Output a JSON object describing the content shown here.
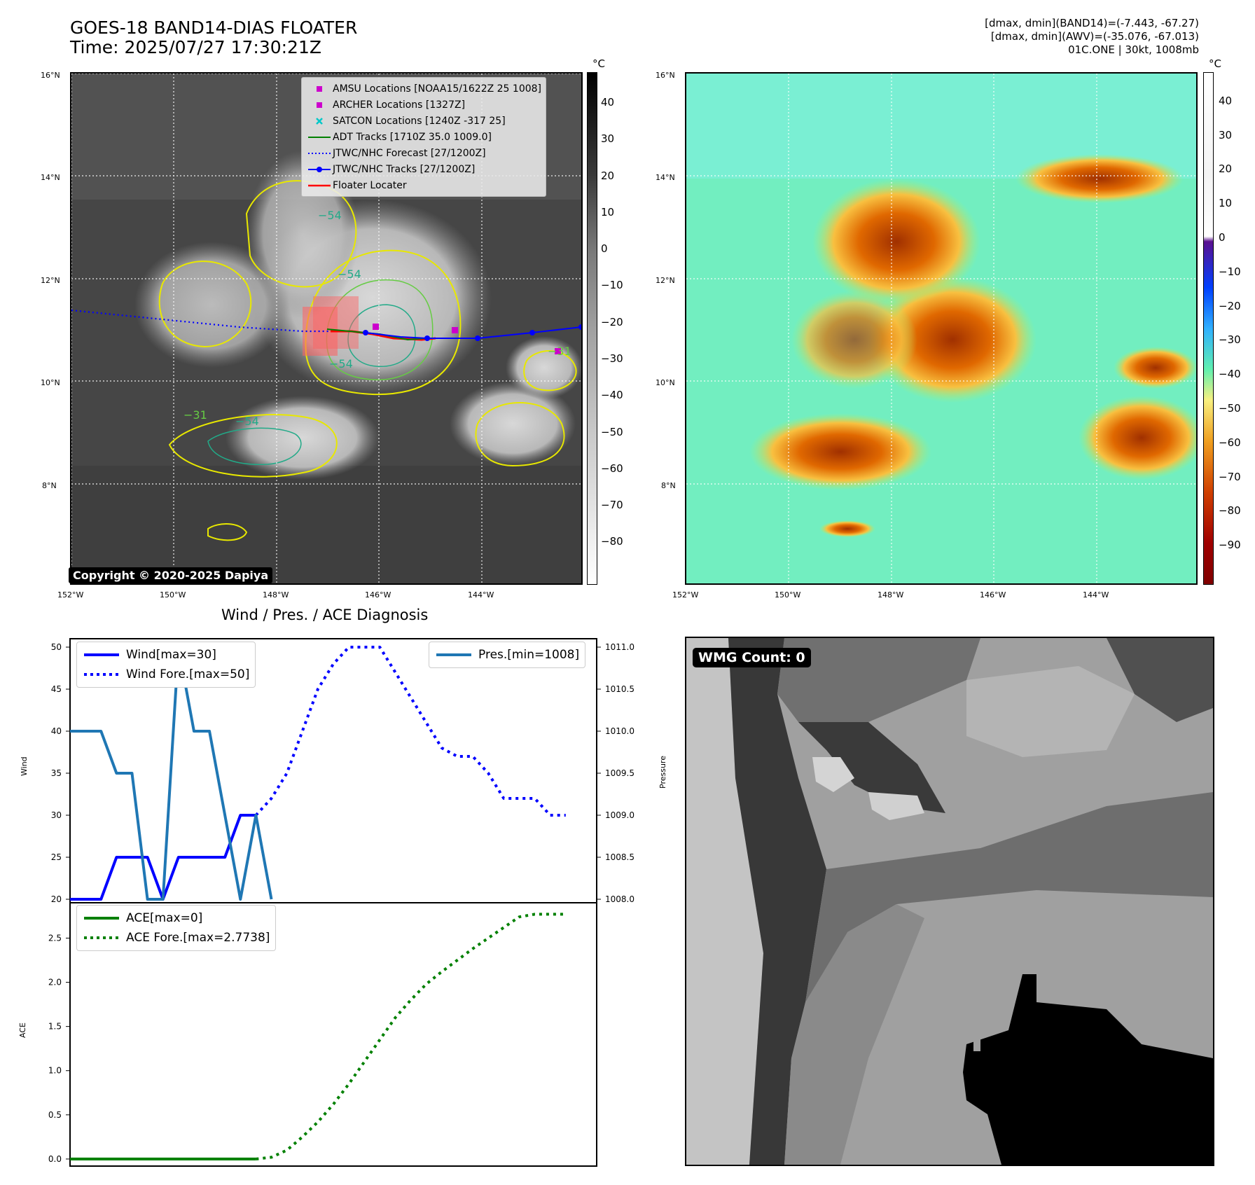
{
  "header": {
    "title_line1": "GOES-18 BAND14-DIAS FLOATER",
    "title_line2": "Time: 2025/07/27 17:30:21Z",
    "right_line1": "[dmax, dmin](BAND14)=(-7.443, -67.27)",
    "right_line2": "[dmax, dmin](AWV)=(-35.076, -67.013)",
    "right_line3": "01C.ONE | 30kt, 1008mb"
  },
  "map_axes": {
    "lat_labels": [
      "16°N",
      "14°N",
      "12°N",
      "10°N",
      "8°N"
    ],
    "lon_labels": [
      "152°W",
      "150°W",
      "148°W",
      "146°W",
      "144°W"
    ]
  },
  "ir_panel": {
    "colorbar_unit": "°C",
    "colorbar_ticks": [
      "40",
      "30",
      "20",
      "10",
      "0",
      "−10",
      "−20",
      "−30",
      "−40",
      "−50",
      "−60",
      "−70",
      "−80"
    ],
    "contour_labels": [
      "−54",
      "−54",
      "−54",
      "−31",
      "−31",
      "−54"
    ],
    "legend": [
      {
        "label": "AMSU Locations [NOAA15/1622Z 25 1008]",
        "symbol": "square",
        "color": "#cc00cc"
      },
      {
        "label": "ARCHER Locations [1327Z]",
        "symbol": "square",
        "color": "#cc00cc"
      },
      {
        "label": "SATCON Locations [1240Z -317 25]",
        "symbol": "x",
        "color": "#00c8c8"
      },
      {
        "label": "ADT Tracks [1710Z 35.0 1009.0]",
        "symbol": "line",
        "color": "#008000"
      },
      {
        "label": "JTWC/NHC Forecast [27/1200Z]",
        "symbol": "dotted",
        "color": "#0000ff"
      },
      {
        "label": "JTWC/NHC Tracks [27/1200Z]",
        "symbol": "line-dot",
        "color": "#0000ff"
      },
      {
        "label": "Floater Locater",
        "symbol": "line",
        "color": "#ff0000"
      }
    ],
    "copyright": "Copyright © 2020-2025 Dapiya"
  },
  "awv_panel": {
    "colorbar_unit": "°C",
    "colorbar_ticks": [
      "40",
      "30",
      "20",
      "10",
      "0",
      "−10",
      "−20",
      "−30",
      "−40",
      "−50",
      "−60",
      "−70",
      "−80",
      "−90"
    ]
  },
  "wmg_panel": {
    "count_label": "WMG Count: 0"
  },
  "diag": {
    "title": "Wind / Pres. / ACE Diagnosis",
    "wind_axis_label": "Wind",
    "pres_axis_label": "Pressure",
    "ace_axis_label": "ACE",
    "legend_wind": "Wind[max=30]",
    "legend_wind_fore": "Wind Fore.[max=50]",
    "legend_pres": "Pres.[min=1008]",
    "legend_ace": "ACE[max=0]",
    "legend_ace_fore": "ACE Fore.[max=2.7738]"
  },
  "chart_data": [
    {
      "type": "line",
      "title": "Wind / Pres. / ACE Diagnosis",
      "ylabel": "Wind",
      "y2label": "Pressure",
      "ylim": [
        19.5,
        51
      ],
      "y2lim": [
        1007.95,
        1011.1
      ],
      "yticks": [
        20,
        25,
        30,
        35,
        40,
        45,
        50
      ],
      "y2ticks": [
        "1008.0",
        "1008.5",
        "1009.0",
        "1009.5",
        "1010.0",
        "1010.5",
        "1011.0"
      ],
      "xlim": [
        0,
        34
      ],
      "series": [
        {
          "name": "Wind[max=30]",
          "color": "#0000ff",
          "style": "solid",
          "x": [
            0,
            1,
            2,
            3,
            4,
            5,
            6,
            7,
            8,
            9,
            10,
            11,
            12
          ],
          "values": [
            20,
            20,
            20,
            25,
            25,
            25,
            20,
            25,
            25,
            25,
            25,
            30,
            30
          ]
        },
        {
          "name": "Wind Fore.[max=50]",
          "color": "#0000ff",
          "style": "dotted",
          "x": [
            12,
            13,
            14,
            15,
            16,
            17,
            18,
            19,
            20,
            21,
            22,
            23,
            24,
            25,
            26,
            27,
            28,
            29,
            30,
            31,
            32
          ],
          "values": [
            30,
            32,
            35,
            40,
            45,
            48,
            50,
            50,
            50,
            47,
            44,
            41,
            38,
            37,
            37,
            35,
            32,
            32,
            32,
            30,
            30
          ]
        },
        {
          "name": "Pres.[min=1008]",
          "color": "#1f77b4",
          "style": "solid",
          "axis": "right",
          "x": [
            0,
            1,
            2,
            3,
            4,
            5,
            6,
            7,
            8,
            9,
            10,
            11,
            12,
            13
          ],
          "values": [
            1010.0,
            1010.0,
            1010.0,
            1009.5,
            1009.5,
            1008.0,
            1008.0,
            1011.0,
            1010.0,
            1010.0,
            1009.0,
            1008.0,
            1009.0,
            1008.0
          ]
        }
      ]
    },
    {
      "type": "line",
      "ylabel": "ACE",
      "ylim": [
        -0.08,
        2.9
      ],
      "yticks": [
        "0.0",
        "0.5",
        "1.0",
        "1.5",
        "2.0",
        "2.5"
      ],
      "xlim": [
        0,
        34
      ],
      "series": [
        {
          "name": "ACE[max=0]",
          "color": "#008000",
          "style": "solid",
          "x": [
            0,
            12
          ],
          "values": [
            0,
            0
          ]
        },
        {
          "name": "ACE Fore.[max=2.7738]",
          "color": "#008000",
          "style": "dotted",
          "x": [
            12,
            13,
            14,
            15,
            16,
            17,
            18,
            19,
            20,
            21,
            22,
            23,
            24,
            25,
            26,
            27,
            28,
            29,
            30,
            31,
            32
          ],
          "values": [
            0,
            0.02,
            0.1,
            0.25,
            0.42,
            0.62,
            0.85,
            1.1,
            1.35,
            1.6,
            1.8,
            1.98,
            2.12,
            2.25,
            2.38,
            2.5,
            2.62,
            2.74,
            2.77,
            2.77,
            2.77
          ]
        }
      ]
    }
  ]
}
